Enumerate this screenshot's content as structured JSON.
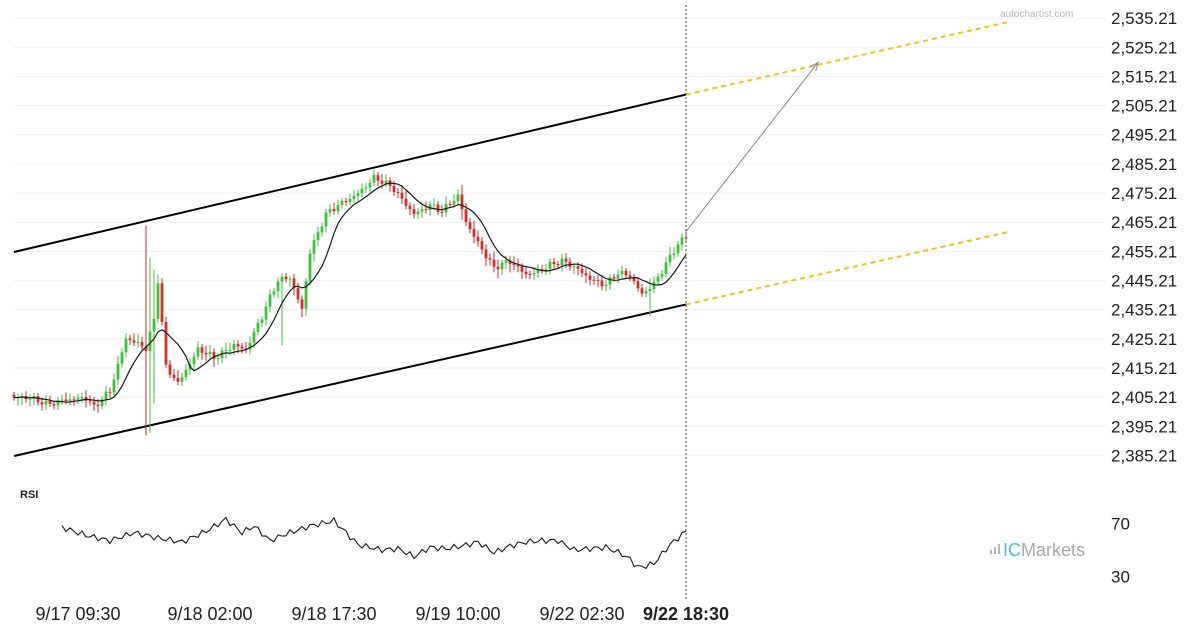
{
  "watermark": "autochartist.com",
  "brand": {
    "prefix": "IC",
    "name": "Markets"
  },
  "chart_data": {
    "type": "candlestick",
    "ylim": [
      2380.21,
      2538
    ],
    "y_ticks": [
      "2,535.21",
      "2,525.21",
      "2,515.21",
      "2,505.21",
      "2,495.21",
      "2,485.21",
      "2,475.21",
      "2,465.21",
      "2,455.21",
      "2,445.21",
      "2,435.21",
      "2,425.21",
      "2,415.21",
      "2,405.21",
      "2,395.21",
      "2,385.21"
    ],
    "x_ticks": [
      {
        "label": "9/17 09:30",
        "index": 16
      },
      {
        "label": "9/18 02:00",
        "index": 49
      },
      {
        "label": "9/18 17:30",
        "index": 80
      },
      {
        "label": "9/19 10:00",
        "index": 111
      },
      {
        "label": "9/22 02:30",
        "index": 142
      },
      {
        "label": "9/22 18:30",
        "index": 168,
        "bold": true
      }
    ],
    "bar_count": 169,
    "current_index": 168,
    "projection_end_index": 249,
    "close_anchors": [
      [
        0,
        2405
      ],
      [
        8,
        2403
      ],
      [
        12,
        2405
      ],
      [
        18,
        2404
      ],
      [
        20,
        2401
      ],
      [
        24,
        2408
      ],
      [
        28,
        2426
      ],
      [
        33,
        2421
      ],
      [
        35,
        2431
      ],
      [
        36,
        2445
      ],
      [
        38,
        2416
      ],
      [
        41,
        2411
      ],
      [
        46,
        2421
      ],
      [
        50,
        2418
      ],
      [
        55,
        2424
      ],
      [
        58,
        2422
      ],
      [
        62,
        2432
      ],
      [
        66,
        2445
      ],
      [
        69,
        2447
      ],
      [
        72,
        2436
      ],
      [
        74,
        2455
      ],
      [
        78,
        2467
      ],
      [
        82,
        2472
      ],
      [
        86,
        2476
      ],
      [
        90,
        2480
      ],
      [
        95,
        2476
      ],
      [
        100,
        2469
      ],
      [
        104,
        2471
      ],
      [
        107,
        2468
      ],
      [
        111,
        2474
      ],
      [
        113,
        2466
      ],
      [
        116,
        2459
      ],
      [
        120,
        2449
      ],
      [
        124,
        2451
      ],
      [
        128,
        2448
      ],
      [
        133,
        2450
      ],
      [
        137,
        2451
      ],
      [
        141,
        2449
      ],
      [
        145,
        2446
      ],
      [
        148,
        2444
      ],
      [
        151,
        2447
      ],
      [
        154,
        2446
      ],
      [
        157,
        2441
      ],
      [
        160,
        2445
      ],
      [
        162,
        2449
      ],
      [
        165,
        2455
      ],
      [
        168,
        2460
      ]
    ],
    "spikes": [
      {
        "index": 33,
        "high": 2464,
        "low": 2392
      },
      {
        "index": 34,
        "high": 2453,
        "low": 2393
      },
      {
        "index": 35,
        "high": 2449,
        "low": 2403
      },
      {
        "index": 67,
        "high": 2437,
        "low": 2423
      },
      {
        "index": 112,
        "high": 2478,
        "low": 2466
      },
      {
        "index": 159,
        "high": 2446,
        "low": 2433
      }
    ],
    "ma_period": 8,
    "channel": {
      "upper": [
        [
          0,
          2455
        ],
        [
          168,
          2509
        ]
      ],
      "lower": [
        [
          0,
          2385
        ],
        [
          168,
          2437
        ]
      ],
      "upper_projection": [
        [
          168,
          2509
        ],
        [
          249,
          2534
        ]
      ],
      "lower_projection": [
        [
          168,
          2437
        ],
        [
          249,
          2462
        ]
      ]
    },
    "target_arrow": {
      "from": [
        168,
        2462
      ],
      "to": [
        201,
        2520
      ]
    },
    "rsi": {
      "label": "RSI",
      "ylim": [
        20,
        80
      ],
      "ticks": [
        70,
        30
      ],
      "start_index": 12,
      "anchors": [
        [
          12,
          67
        ],
        [
          18,
          61
        ],
        [
          24,
          57
        ],
        [
          30,
          63
        ],
        [
          36,
          59
        ],
        [
          42,
          56
        ],
        [
          48,
          64
        ],
        [
          53,
          73
        ],
        [
          57,
          63
        ],
        [
          60,
          68
        ],
        [
          64,
          57
        ],
        [
          68,
          62
        ],
        [
          74,
          68
        ],
        [
          80,
          72
        ],
        [
          86,
          54
        ],
        [
          92,
          50
        ],
        [
          96,
          51
        ],
        [
          100,
          45
        ],
        [
          104,
          52
        ],
        [
          108,
          51
        ],
        [
          112,
          53
        ],
        [
          116,
          56
        ],
        [
          120,
          48
        ],
        [
          124,
          53
        ],
        [
          128,
          56
        ],
        [
          132,
          57
        ],
        [
          136,
          57
        ],
        [
          140,
          50
        ],
        [
          144,
          51
        ],
        [
          148,
          52
        ],
        [
          152,
          47
        ],
        [
          154,
          43
        ],
        [
          156,
          37
        ],
        [
          158,
          38
        ],
        [
          160,
          40
        ],
        [
          164,
          54
        ],
        [
          168,
          64
        ]
      ]
    }
  }
}
